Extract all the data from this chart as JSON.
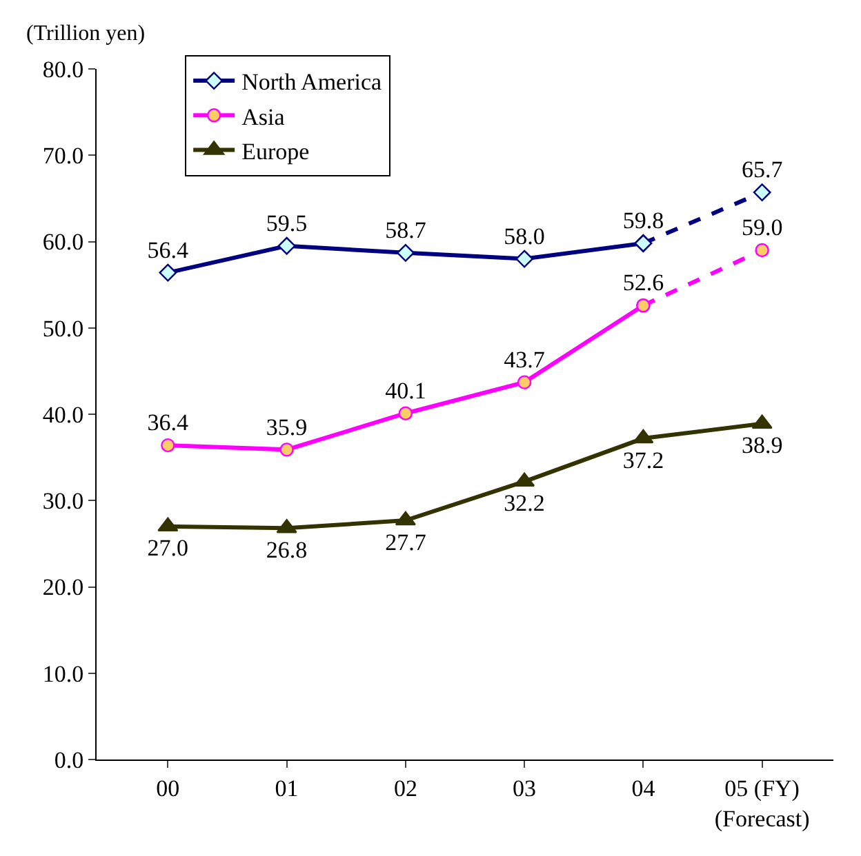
{
  "chart_data": {
    "type": "line",
    "ylabel": "(Trillion yen)",
    "categories": [
      "00",
      "01",
      "02",
      "03",
      "04",
      "05 (FY)\n(Forecast)"
    ],
    "series": [
      {
        "name": "North America",
        "color": "#000080",
        "marker": "diamond",
        "values": [
          56.4,
          59.5,
          58.7,
          58.0,
          59.8,
          null
        ],
        "value_labels": [
          "56.4",
          "59.5",
          "58.7",
          "58.0",
          "59.8",
          null
        ]
      },
      {
        "name": "Asia",
        "color": "#ff00ff",
        "marker": "circle",
        "values": [
          36.4,
          35.9,
          40.1,
          43.7,
          52.6,
          null
        ],
        "value_labels": [
          "36.4",
          "35.9",
          "40.1",
          "43.7",
          "52.6",
          null
        ]
      },
      {
        "name": "Europe",
        "color": "#333300",
        "marker": "triangle",
        "values": [
          27.0,
          26.8,
          27.7,
          32.2,
          37.2,
          38.9
        ],
        "value_labels": [
          "27.0",
          "26.8",
          "27.7",
          "32.2",
          "37.2",
          "38.9"
        ]
      },
      {
        "color": "#000080",
        "marker": "diamond",
        "line_style": "dashed",
        "values": [
          null,
          null,
          null,
          null,
          59.8,
          65.7
        ],
        "value_labels": [
          null,
          null,
          null,
          null,
          null,
          "65.7"
        ]
      },
      {
        "color": "#ff00ff",
        "marker": "circle",
        "line_style": "dashed",
        "values": [
          null,
          null,
          null,
          null,
          52.6,
          59.0
        ],
        "value_labels": [
          null,
          null,
          null,
          null,
          null,
          "59.0"
        ]
      }
    ],
    "ylim": [
      0,
      80
    ],
    "yticks": [
      {
        "value": 0,
        "label": "0.0"
      },
      {
        "value": 10,
        "label": "10.0"
      },
      {
        "value": 20,
        "label": "20.0"
      },
      {
        "value": 30,
        "label": "30.0"
      },
      {
        "value": 40,
        "label": "40.0"
      },
      {
        "value": 50,
        "label": "50.0"
      },
      {
        "value": 60,
        "label": "60.0"
      },
      {
        "value": 70,
        "label": "70.0"
      },
      {
        "value": 80,
        "label": "80.0"
      }
    ],
    "legend": "top left"
  }
}
